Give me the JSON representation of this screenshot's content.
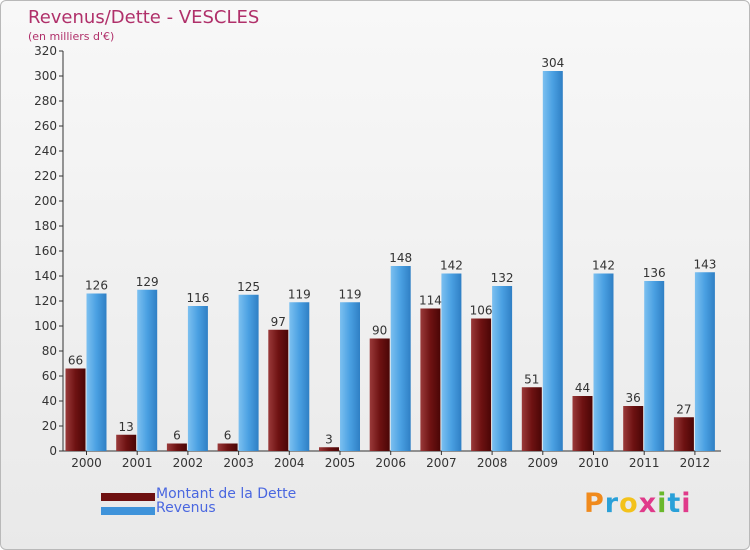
{
  "header": {
    "title": "Revenus/Dette - VESCLES",
    "subtitle": "(en milliers d'€)"
  },
  "colors": {
    "dette": "#6e1010",
    "revenus": "#3f93da",
    "title": "#b0306a",
    "legend_text": "#4a67e0"
  },
  "logo": {
    "text": "Proxiti"
  },
  "chart_data": {
    "type": "bar",
    "categories": [
      "2000",
      "2001",
      "2002",
      "2003",
      "2004",
      "2005",
      "2006",
      "2007",
      "2008",
      "2009",
      "2010",
      "2011",
      "2012"
    ],
    "series": [
      {
        "name": "Montant de la Dette",
        "values": [
          66,
          13,
          6,
          6,
          97,
          3,
          90,
          114,
          106,
          51,
          44,
          36,
          27
        ]
      },
      {
        "name": "Revenus",
        "values": [
          126,
          129,
          116,
          125,
          119,
          119,
          148,
          142,
          132,
          304,
          142,
          136,
          143
        ]
      }
    ],
    "ylim": [
      0,
      320
    ],
    "yticks": [
      0,
      20,
      40,
      60,
      80,
      100,
      120,
      140,
      160,
      180,
      200,
      220,
      240,
      260,
      280,
      300,
      320
    ],
    "grid": false,
    "legend_position": "bottom-left"
  }
}
